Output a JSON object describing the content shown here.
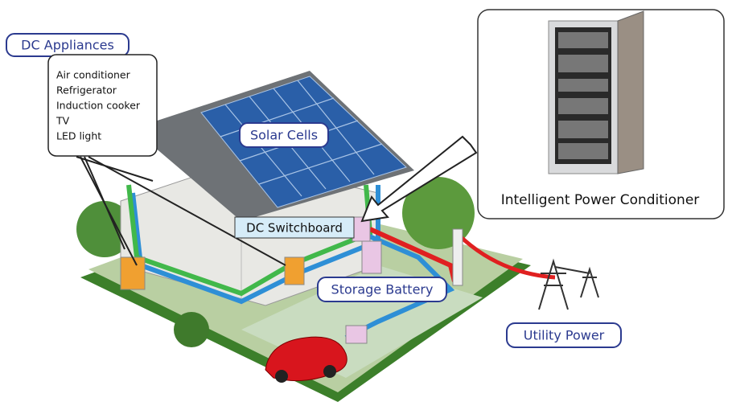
{
  "appliances": {
    "title": "DC Appliances",
    "items": [
      "Air conditioner",
      "Refrigerator",
      "Induction cooker",
      "TV",
      "LED light"
    ]
  },
  "nodes": [
    {
      "label": "Solar Cells"
    },
    {
      "label": "DC Switchboard"
    },
    {
      "label": "Storage Battery"
    },
    {
      "label": "Utility Power"
    }
  ],
  "conditioner": {
    "caption": "Intelligent Power Conditioner"
  }
}
